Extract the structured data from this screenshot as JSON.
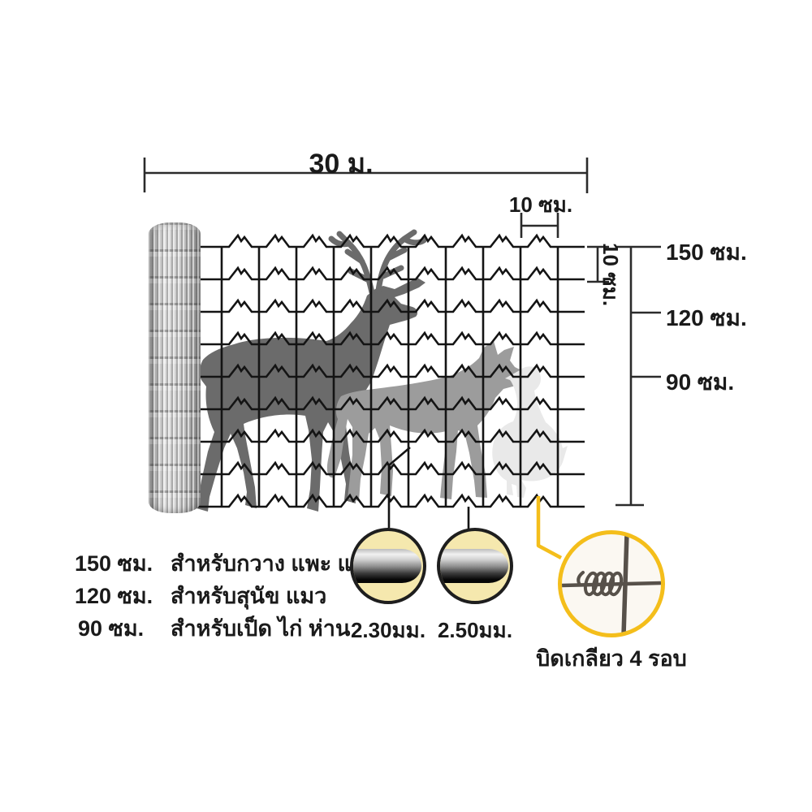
{
  "dimensions": {
    "roll_length": "30 ม.",
    "cell_width": "10 ซม.",
    "row_spacing": "10 ซม.",
    "height_marks": [
      "150 ซม.",
      "120 ซม.",
      "90 ซม."
    ]
  },
  "legend": {
    "rows": [
      {
        "size": "150 ซม.",
        "use": "สำหรับกวาง แพะ แกะ"
      },
      {
        "size": "120 ซม.",
        "use": "สำหรับสุนัข แมว"
      },
      {
        "size": "90 ซม.",
        "use": "สำหรับเป็ด ไก่ ห่าน"
      }
    ]
  },
  "callouts": {
    "wire_small_gauge": "2.30มม.",
    "wire_large_gauge": "2.50มม.",
    "twist_label": "บิดเกลียว 4 รอบ"
  },
  "icons": {
    "fence_roll": "fence-roll",
    "deer": "deer-silhouette",
    "wolf": "dog-silhouette",
    "goose": "goose-silhouette",
    "wire_cylinder": "wire-gauge-cylinder",
    "twist_joint": "twisted-wire-joint"
  },
  "colors": {
    "background": "#FFFFFF",
    "wire_black": "#141414",
    "dimension_line": "#2b2b2b",
    "accent_yellow": "#F4BE1B",
    "circle_cream": "#F5E8AE",
    "deer_gray": "#6B6B6B",
    "dog_gray": "#9C9C9C",
    "goose_gray": "#E9E9E9",
    "text": "#1A1A1A"
  }
}
